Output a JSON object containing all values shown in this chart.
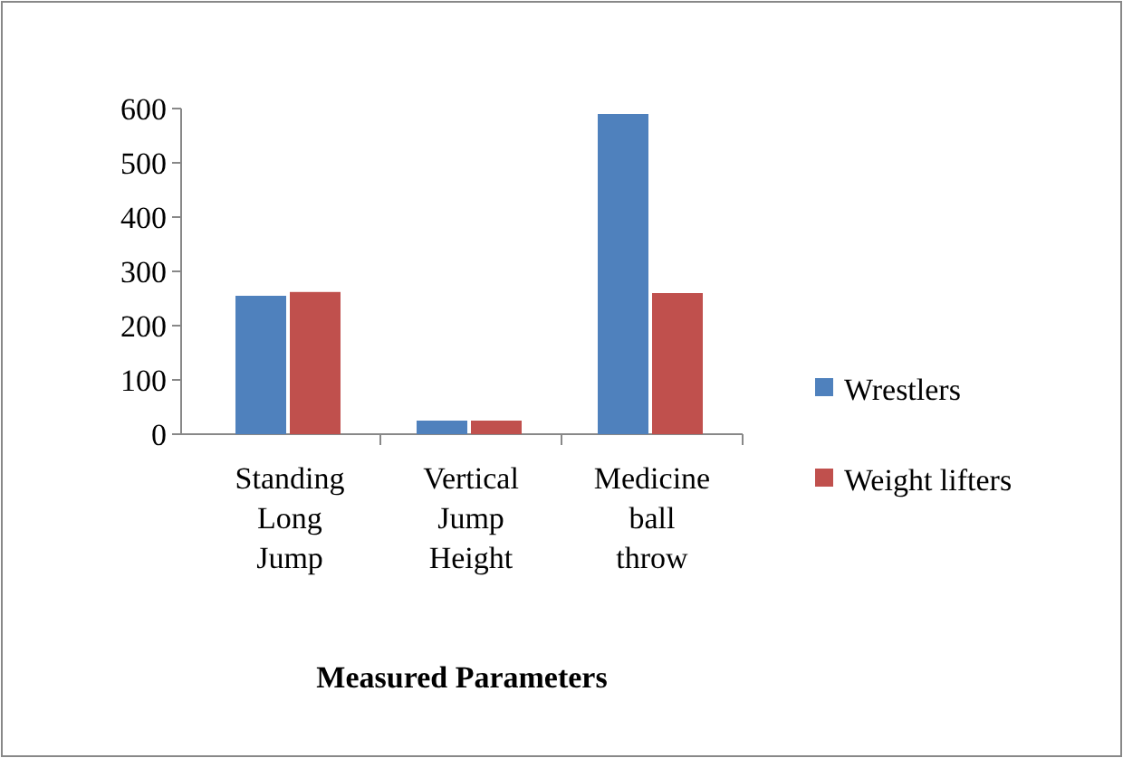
{
  "chart_data": {
    "type": "bar",
    "xlabel": "Measured Parameters",
    "categories": [
      "Standing Long Jump",
      "Vertical Jump Height",
      "Medicine ball throw"
    ],
    "series": [
      {
        "name": "Wrestlers",
        "color": "#4f81bd",
        "values": [
          255,
          25,
          590
        ]
      },
      {
        "name": "Weight lifters",
        "color": "#c0504d",
        "values": [
          262,
          25,
          260
        ]
      }
    ],
    "ylim": [
      0,
      600
    ],
    "yticks": [
      0,
      100,
      200,
      300,
      400,
      500,
      600
    ],
    "grid": false,
    "legend": "right"
  }
}
